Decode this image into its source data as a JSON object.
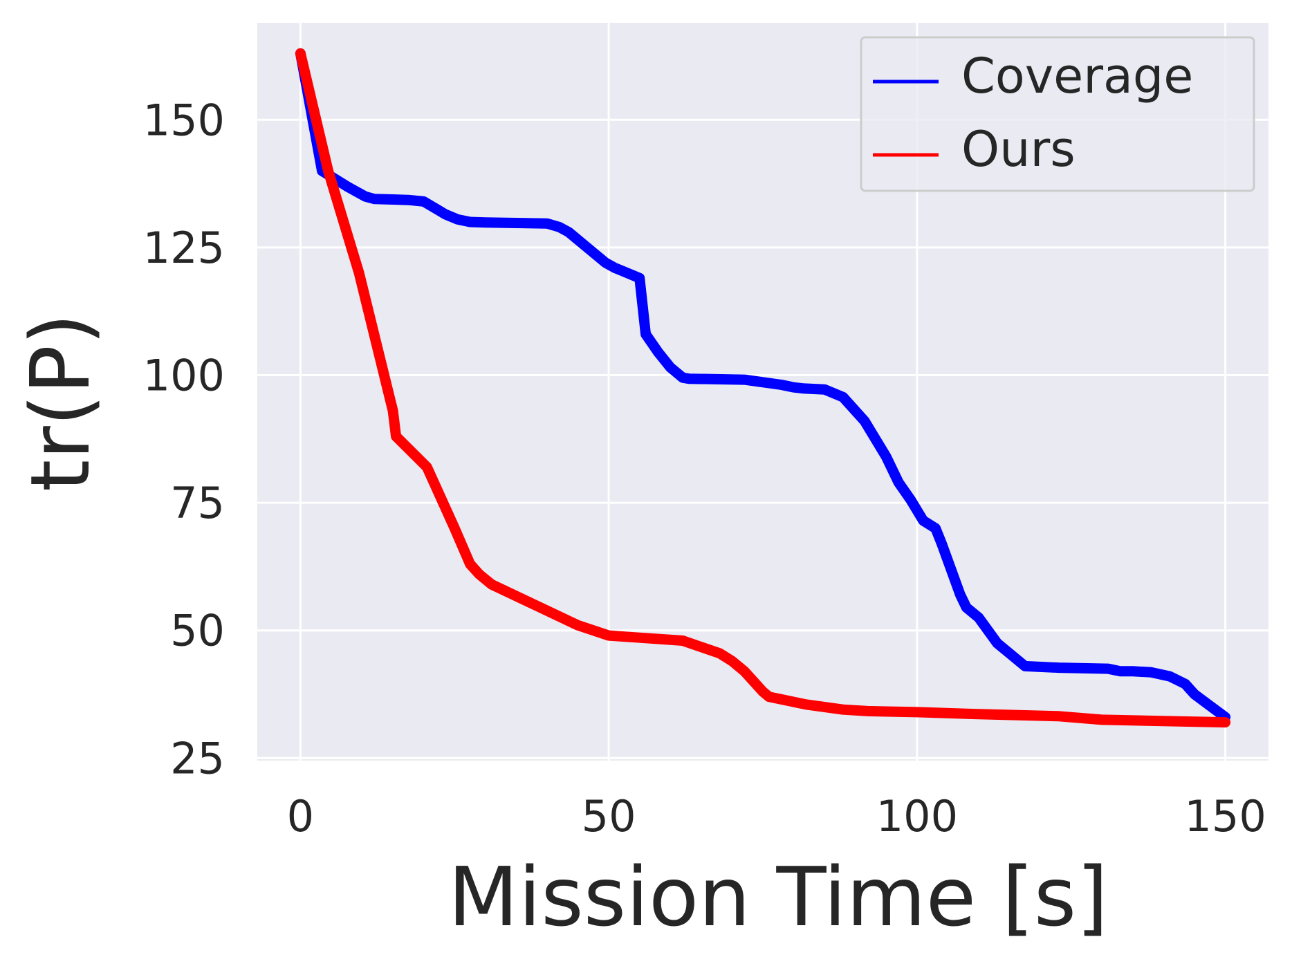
{
  "chart_data": {
    "type": "line",
    "title": "",
    "xlabel": "Mission Time [s]",
    "ylabel": "tr(P)",
    "xlim": [
      -7,
      157
    ],
    "ylim": [
      24.5,
      169
    ],
    "xticks": [
      0,
      50,
      100,
      150
    ],
    "xtick_labels": [
      "0",
      "50",
      "100",
      "150"
    ],
    "yticks": [
      25,
      50,
      75,
      100,
      125,
      150
    ],
    "ytick_labels": [
      "25",
      "50",
      "75",
      "100",
      "125",
      "150"
    ],
    "grid": true,
    "legend_position": "top-right",
    "colors": {
      "background": "#eaeaf2",
      "grid": "#ffffff",
      "text": "#262626"
    },
    "series": [
      {
        "name": "Coverage",
        "color": "#0000ff",
        "x": [
          0,
          3.5,
          7.5,
          10.5,
          12,
          15,
          17.5,
          20,
          23.5,
          25.5,
          27.5,
          30,
          40,
          42,
          43.5,
          45,
          46.5,
          48,
          49.5,
          51,
          52,
          55,
          56,
          58,
          60,
          62,
          63,
          72,
          78,
          80,
          81.5,
          85,
          88,
          91.5,
          94,
          95,
          97,
          99,
          101,
          103,
          104,
          107,
          108,
          110,
          111.5,
          113,
          115,
          117.5,
          123,
          131,
          133,
          135,
          138,
          141,
          143.5,
          145,
          150
        ],
        "y": [
          163,
          140,
          137,
          135,
          134.5,
          134.4,
          134.3,
          134,
          131.5,
          130.5,
          130,
          129.9,
          129.7,
          129,
          128,
          126.5,
          125,
          123.5,
          122,
          121,
          120.5,
          119,
          108,
          104.5,
          101.5,
          99.5,
          99.3,
          99.1,
          98.1,
          97.6,
          97.4,
          97.2,
          95.7,
          91,
          86,
          84,
          79,
          75.5,
          71.5,
          70,
          67,
          57,
          54.5,
          52.5,
          50,
          47.5,
          45.5,
          43,
          42.7,
          42.5,
          42,
          42,
          41.8,
          41,
          39.5,
          37.5,
          33
        ]
      },
      {
        "name": "Ours",
        "color": "#ff0000",
        "x": [
          0,
          4.5,
          9.5,
          15,
          15.5,
          20.5,
          25,
          27.5,
          29,
          31,
          45,
          50,
          56,
          62,
          68,
          70,
          72,
          75,
          76,
          78,
          82,
          88,
          92,
          100,
          110,
          123,
          130,
          150
        ],
        "y": [
          163,
          140,
          120,
          93,
          88,
          82,
          70,
          63,
          61,
          59,
          51,
          49,
          48.5,
          48,
          45.5,
          44,
          42,
          38,
          37,
          36.5,
          35.5,
          34.5,
          34.2,
          34,
          33.6,
          33.2,
          32.5,
          32
        ]
      }
    ]
  }
}
